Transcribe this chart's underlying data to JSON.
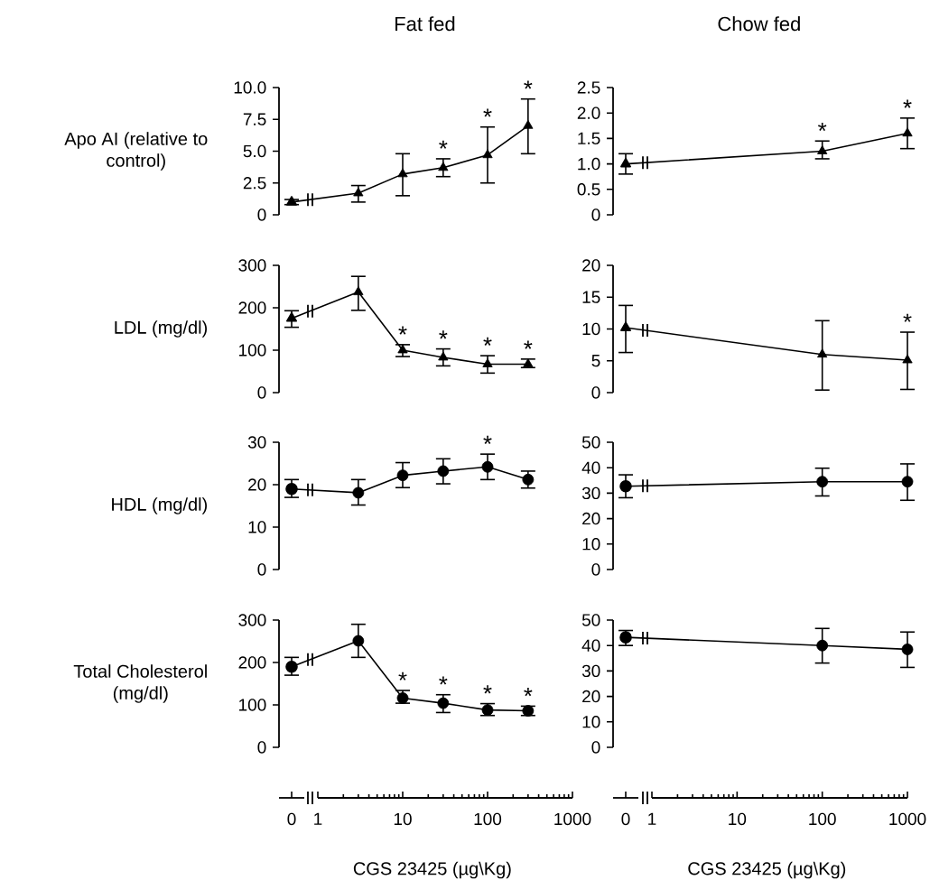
{
  "chart_data": [
    {
      "type": "line",
      "categories": [
        "0"
      ],
      "ylim": [
        0,
        10
      ],
      "marker": "triangle",
      "tick_labels": false,
      "series": [
        {
          "color": "#000000",
          "values": [
            1.0
          ],
          "errors": [
            [
              0.8,
              1.2
            ]
          ]
        }
      ]
    },
    {
      "type": "line",
      "title": "Fat fed",
      "ylabel": "Apo AI (relative to control)",
      "x": [
        3,
        10,
        30,
        100,
        300
      ],
      "log": "x",
      "xlim": [
        1,
        1000
      ],
      "ylim": [
        0,
        10
      ],
      "yticks": [
        0,
        2.5,
        {
          "value": 5,
          "label": "5.0"
        },
        7.5,
        {
          "value": 10,
          "label": "10.0"
        }
      ],
      "marker": "triangle",
      "tick_labels": "y",
      "series": [
        {
          "color": "#000000",
          "values": [
            1.7,
            3.2,
            3.7,
            4.7,
            7.0
          ],
          "errors": [
            [
              1.0,
              2.3
            ],
            [
              1.5,
              4.8
            ],
            [
              3.0,
              4.4
            ],
            [
              2.5,
              6.9
            ],
            [
              4.8,
              9.1
            ]
          ]
        }
      ],
      "annotations": [
        {
          "text": "*",
          "x": 30,
          "y": 4.4
        },
        {
          "text": "*",
          "x": 100,
          "y": 6.9
        },
        {
          "text": "*",
          "x": 300,
          "y": 9.1
        }
      ]
    },
    {
      "type": "line",
      "categories": [
        "0"
      ],
      "ylim": [
        0,
        2.5
      ],
      "marker": "triangle",
      "tick_labels": false,
      "series": [
        {
          "color": "#000000",
          "values": [
            1.0
          ],
          "errors": [
            [
              0.8,
              1.2
            ]
          ]
        }
      ]
    },
    {
      "type": "line",
      "title": "Chow fed",
      "x": [
        100,
        1000
      ],
      "log": "x",
      "xlim": [
        1,
        1000
      ],
      "ylim": [
        0,
        2.5
      ],
      "yticks": [
        0,
        0.5,
        {
          "value": 1,
          "label": "1.0"
        },
        1.5,
        {
          "value": 2,
          "label": "2.0"
        },
        2.5
      ],
      "marker": "triangle",
      "tick_labels": "y",
      "series": [
        {
          "color": "#000000",
          "values": [
            1.25,
            1.6
          ],
          "errors": [
            [
              1.1,
              1.45
            ],
            [
              1.3,
              1.9
            ]
          ]
        }
      ],
      "annotations": [
        {
          "text": "*",
          "x": 100,
          "y": 1.45
        },
        {
          "text": "*",
          "x": 1000,
          "y": 1.9
        }
      ]
    },
    {
      "type": "line",
      "categories": [
        "0"
      ],
      "ylim": [
        0,
        300
      ],
      "marker": "triangle",
      "tick_labels": false,
      "series": [
        {
          "color": "#000000",
          "values": [
            175
          ],
          "errors": [
            [
              154,
              193
            ]
          ]
        }
      ]
    },
    {
      "type": "line",
      "ylabel": "LDL (mg/dl)",
      "x": [
        3,
        10,
        30,
        100,
        300
      ],
      "log": "x",
      "xlim": [
        1,
        1000
      ],
      "ylim": [
        0,
        300
      ],
      "yticks": [
        0,
        100,
        200,
        300
      ],
      "marker": "triangle",
      "tick_labels": "y",
      "series": [
        {
          "color": "#000000",
          "values": [
            237,
            100,
            83,
            67,
            67
          ],
          "errors": [
            [
              194,
              274
            ],
            [
              85,
              113
            ],
            [
              63,
              103
            ],
            [
              46,
              87
            ],
            [
              59,
              79
            ]
          ]
        }
      ],
      "annotations": [
        {
          "text": "*",
          "x": 10,
          "y": 113
        },
        {
          "text": "*",
          "x": 30,
          "y": 103
        },
        {
          "text": "*",
          "x": 100,
          "y": 87
        },
        {
          "text": "*",
          "x": 300,
          "y": 79
        }
      ]
    },
    {
      "type": "line",
      "categories": [
        "0"
      ],
      "ylim": [
        0,
        20
      ],
      "marker": "triangle",
      "tick_labels": false,
      "series": [
        {
          "color": "#000000",
          "values": [
            10.2
          ],
          "errors": [
            [
              6.3,
              13.7
            ]
          ]
        }
      ]
    },
    {
      "type": "line",
      "x": [
        100,
        1000
      ],
      "log": "x",
      "xlim": [
        1,
        1000
      ],
      "ylim": [
        0,
        20
      ],
      "yticks": [
        0,
        5,
        10,
        15,
        20
      ],
      "marker": "triangle",
      "tick_labels": "y",
      "series": [
        {
          "color": "#000000",
          "values": [
            6.0,
            5.1
          ],
          "errors": [
            [
              0.4,
              11.3
            ],
            [
              0.5,
              9.5
            ]
          ]
        }
      ],
      "annotations": [
        {
          "text": "*",
          "x": 1000,
          "y": 9.5
        }
      ]
    },
    {
      "type": "line",
      "categories": [
        "0"
      ],
      "ylim": [
        0,
        30
      ],
      "marker": "circle",
      "tick_labels": false,
      "series": [
        {
          "color": "#000000",
          "values": [
            19.0
          ],
          "errors": [
            [
              17.0,
              21.2
            ]
          ]
        }
      ]
    },
    {
      "type": "line",
      "ylabel": "HDL (mg/dl)",
      "x": [
        3,
        10,
        30,
        100,
        300
      ],
      "log": "x",
      "xlim": [
        1,
        1000
      ],
      "ylim": [
        0,
        30
      ],
      "yticks": [
        0,
        10,
        20,
        30
      ],
      "marker": "circle",
      "tick_labels": "y",
      "series": [
        {
          "color": "#000000",
          "values": [
            18.1,
            22.2,
            23.2,
            24.2,
            21.2
          ],
          "errors": [
            [
              15.2,
              21.2
            ],
            [
              19.3,
              25.2
            ],
            [
              20.2,
              26.1
            ],
            [
              21.2,
              27.2
            ],
            [
              19.2,
              23.2
            ]
          ]
        }
      ],
      "annotations": [
        {
          "text": "*",
          "x": 100,
          "y": 27.2
        }
      ]
    },
    {
      "type": "line",
      "categories": [
        "0"
      ],
      "ylim": [
        0,
        50
      ],
      "marker": "circle",
      "tick_labels": false,
      "series": [
        {
          "color": "#000000",
          "values": [
            32.7
          ],
          "errors": [
            [
              28.2,
              37.2
            ]
          ]
        }
      ]
    },
    {
      "type": "line",
      "x": [
        100,
        1000
      ],
      "log": "x",
      "xlim": [
        1,
        1000
      ],
      "ylim": [
        0,
        50
      ],
      "yticks": [
        0,
        10,
        20,
        30,
        40,
        50
      ],
      "marker": "circle",
      "tick_labels": "y",
      "series": [
        {
          "color": "#000000",
          "values": [
            34.5,
            34.5
          ],
          "errors": [
            [
              28.9,
              39.8
            ],
            [
              27.2,
              41.5
            ]
          ]
        }
      ]
    },
    {
      "type": "line",
      "categories": [
        "0"
      ],
      "ylim": [
        0,
        300
      ],
      "marker": "circle",
      "tick_labels": "x",
      "series": [
        {
          "color": "#000000",
          "values": [
            190
          ],
          "errors": [
            [
              170,
              212
            ]
          ]
        }
      ]
    },
    {
      "type": "line",
      "ylabel": "Total Cholesterol (mg/dl)",
      "xlabel": "CGS 23425 (µg\\Kg)",
      "x": [
        3,
        10,
        30,
        100,
        300
      ],
      "log": "x",
      "xlim": [
        1,
        1000
      ],
      "xticks": [
        1,
        10,
        100,
        1000
      ],
      "ylim": [
        0,
        300
      ],
      "yticks": [
        0,
        100,
        200,
        300
      ],
      "marker": "circle",
      "series": [
        {
          "color": "#000000",
          "values": [
            251,
            116,
            104,
            88,
            86
          ],
          "errors": [
            [
              212,
              290
            ],
            [
              104,
              134
            ],
            [
              82,
              124
            ],
            [
              75,
              103
            ],
            [
              75,
              97
            ]
          ]
        }
      ],
      "annotations": [
        {
          "text": "*",
          "x": 10,
          "y": 134
        },
        {
          "text": "*",
          "x": 30,
          "y": 124
        },
        {
          "text": "*",
          "x": 100,
          "y": 103
        },
        {
          "text": "*",
          "x": 300,
          "y": 97
        }
      ]
    },
    {
      "type": "line",
      "categories": [
        "0"
      ],
      "ylim": [
        0,
        50
      ],
      "marker": "circle",
      "tick_labels": "x",
      "series": [
        {
          "color": "#000000",
          "values": [
            43.2
          ],
          "errors": [
            [
              40.0,
              45.9
            ]
          ]
        }
      ]
    },
    {
      "type": "line",
      "xlabel": "CGS 23425 (µg\\Kg)",
      "x": [
        100,
        1000
      ],
      "log": "x",
      "xlim": [
        1,
        1000
      ],
      "xticks": [
        1,
        10,
        100,
        1000
      ],
      "ylim": [
        0,
        50
      ],
      "yticks": [
        0,
        10,
        20,
        30,
        40,
        50
      ],
      "marker": "circle",
      "series": [
        {
          "color": "#000000",
          "values": [
            40.0,
            38.5
          ],
          "errors": [
            [
              33.1,
              46.7
            ],
            [
              31.4,
              45.3
            ]
          ]
        }
      ]
    }
  ]
}
